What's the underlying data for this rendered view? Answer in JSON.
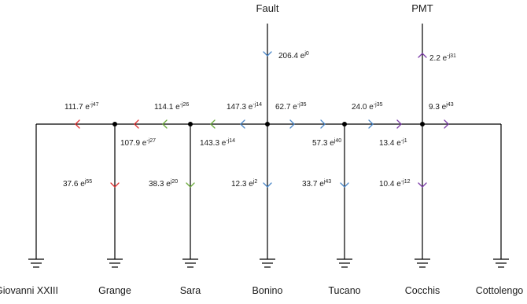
{
  "top_labels": {
    "fault": "Fault",
    "pmt": "PMT"
  },
  "nodes": [
    "Giovanni XXIII",
    "Grange",
    "Sara",
    "Bonino",
    "Tucano",
    "Cocchis",
    "Cottolengo"
  ],
  "currents": {
    "fault_in": {
      "mag": "206.4",
      "exp": "j0",
      "color": "#4a86c8"
    },
    "pmt_out": {
      "mag": "2.2",
      "exp": "-j31",
      "color": "#7b3aa8"
    },
    "gx_upper": {
      "mag": "111.7",
      "exp": "-j47",
      "color": "#e03030"
    },
    "gr_upper": {
      "mag": "114.1",
      "exp": "-j26",
      "color": "#e03030"
    },
    "sa_upper": {
      "mag": "147.3",
      "exp": "-j14",
      "color": "#6aaa3a"
    },
    "bo_right_a": {
      "mag": "62.7",
      "exp": "-j35",
      "color": "#4a86c8"
    },
    "tu_right": {
      "mag": "24.0",
      "exp": "-j35",
      "color": "#7b3aa8"
    },
    "co_right": {
      "mag": "9.3",
      "exp": "j43",
      "color": "#7b3aa8"
    },
    "gr_lower": {
      "mag": "107.9",
      "exp": "-j27",
      "color": "#e03030"
    },
    "sa_lower": {
      "mag": "143.3",
      "exp": "-j14",
      "color": "#4a86c8"
    },
    "bo_lower": {
      "mag": "57.3",
      "exp": "j40",
      "color": "#4a86c8"
    },
    "tu_lower": {
      "mag": "13.4",
      "exp": "-j1",
      "color": "#4a86c8"
    },
    "gr_down": {
      "mag": "37.6",
      "exp": "j55",
      "color": "#e03030"
    },
    "sa_down": {
      "mag": "38.3",
      "exp": "j20",
      "color": "#6aaa3a"
    },
    "bo_down": {
      "mag": "12.3",
      "exp": "j2",
      "color": "#4a86c8"
    },
    "tu_down": {
      "mag": "33.7",
      "exp": "j43",
      "color": "#4a86c8"
    },
    "co_down": {
      "mag": "10.4",
      "exp": "-j12",
      "color": "#7b3aa8"
    }
  },
  "colors": {
    "red": "#e03030",
    "green": "#6aaa3a",
    "blue": "#4a86c8",
    "purple": "#7b3aa8",
    "wire": "#000000"
  }
}
